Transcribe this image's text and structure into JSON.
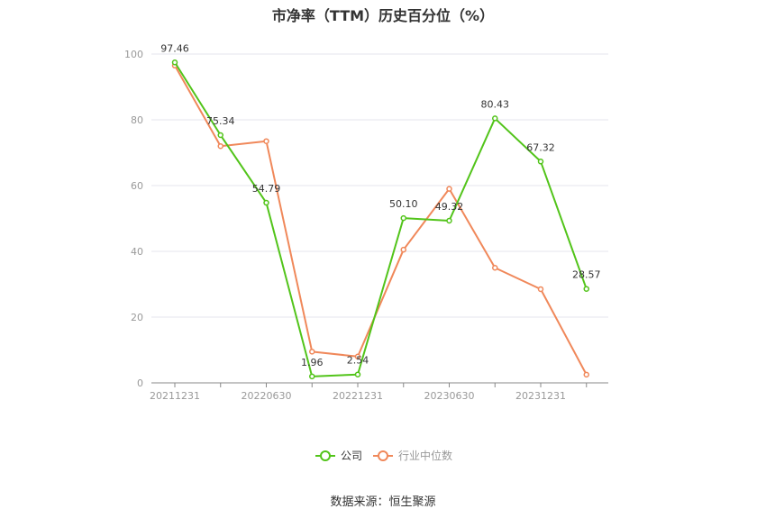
{
  "chart_data": {
    "type": "line",
    "title": "市净率（TTM）历史百分位（%）",
    "x_tick_labels": [
      "20211231",
      "20220630",
      "20221231",
      "20230630",
      "20231231"
    ],
    "ylim": [
      0,
      100
    ],
    "y_ticks": [
      "0",
      "20",
      "40",
      "60",
      "80",
      "100"
    ],
    "grid": true,
    "legend_position": "bottom",
    "series": [
      {
        "name": "公司",
        "color": "#52c41a",
        "values": [
          97.46,
          75.34,
          54.79,
          1.96,
          2.54,
          50.1,
          49.32,
          80.43,
          67.32,
          28.57
        ],
        "labels": [
          "97.46",
          "75.34",
          "54.79",
          "1.96",
          "2.54",
          "50.10",
          "49.32",
          "80.43",
          "67.32",
          "28.57"
        ]
      },
      {
        "name": "行业中位数",
        "color": "#f0885a",
        "values": [
          96.5,
          72.0,
          73.5,
          9.5,
          8.0,
          40.5,
          59.0,
          35.0,
          28.5,
          2.5
        ]
      }
    ]
  },
  "source": "数据来源：恒生聚源"
}
